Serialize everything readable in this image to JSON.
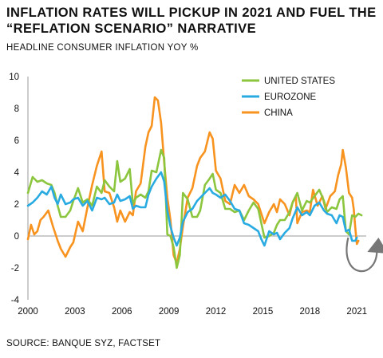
{
  "title_line1": "INFLATION RATES WILL PICKUP IN 2021 AND FUEL THE",
  "title_line2": "“REFLATION SCENARIO” NARRATIVE",
  "subtitle": "HEADLINE CONSUMER INFLATION YOY %",
  "source": "SOURCE: BANQUE SYZ, FACTSET",
  "colors": {
    "us": "#8cc63f",
    "eurozone": "#29abe2",
    "china": "#f7931e",
    "axis": "#999999",
    "arrow": "#777777"
  },
  "chart_data": {
    "type": "line",
    "title": "",
    "xlabel": "",
    "ylabel": "",
    "ylim": [
      -4,
      10
    ],
    "xlim": [
      2000,
      2021.6
    ],
    "y_ticks": [
      "-4",
      "-2",
      "0",
      "2",
      "4",
      "6",
      "8",
      "10"
    ],
    "x_ticks": [
      "2000",
      "2003",
      "2006",
      "2009",
      "2012",
      "2015",
      "2018",
      "2021"
    ],
    "legend_position": "top-right",
    "grid": false,
    "annotations": [
      "curved arrow near 2021 pointing upward (rebound expected)"
    ],
    "series": [
      {
        "name": "UNITED STATES",
        "color": "#8cc63f",
        "points": [
          [
            2000,
            2.7
          ],
          [
            2000.3,
            3.7
          ],
          [
            2000.6,
            3.4
          ],
          [
            2000.9,
            3.5
          ],
          [
            2001.2,
            3.3
          ],
          [
            2001.5,
            3.2
          ],
          [
            2001.7,
            2.7
          ],
          [
            2001.9,
            1.9
          ],
          [
            2002.1,
            1.2
          ],
          [
            2002.4,
            1.2
          ],
          [
            2002.7,
            1.6
          ],
          [
            2002.9,
            2.2
          ],
          [
            2003.2,
            3.0
          ],
          [
            2003.5,
            2.1
          ],
          [
            2003.8,
            2.3
          ],
          [
            2004.1,
            1.9
          ],
          [
            2004.4,
            3.1
          ],
          [
            2004.7,
            2.7
          ],
          [
            2004.9,
            3.5
          ],
          [
            2005.2,
            3.1
          ],
          [
            2005.5,
            2.8
          ],
          [
            2005.7,
            4.7
          ],
          [
            2005.9,
            3.4
          ],
          [
            2006.2,
            3.6
          ],
          [
            2006.5,
            4.2
          ],
          [
            2006.7,
            2.0
          ],
          [
            2006.9,
            2.4
          ],
          [
            2007.2,
            2.6
          ],
          [
            2007.5,
            2.4
          ],
          [
            2007.7,
            2.8
          ],
          [
            2007.9,
            4.1
          ],
          [
            2008.2,
            4.0
          ],
          [
            2008.5,
            5.4
          ],
          [
            2008.7,
            4.9
          ],
          [
            2008.9,
            0.1
          ],
          [
            2009.1,
            0.0
          ],
          [
            2009.3,
            -0.7
          ],
          [
            2009.5,
            -2.0
          ],
          [
            2009.7,
            -1.2
          ],
          [
            2009.9,
            2.7
          ],
          [
            2010.2,
            2.3
          ],
          [
            2010.5,
            1.2
          ],
          [
            2010.8,
            1.2
          ],
          [
            2011.0,
            1.6
          ],
          [
            2011.3,
            3.2
          ],
          [
            2011.6,
            3.6
          ],
          [
            2011.8,
            3.9
          ],
          [
            2012.0,
            2.9
          ],
          [
            2012.3,
            2.7
          ],
          [
            2012.6,
            1.7
          ],
          [
            2012.9,
            1.7
          ],
          [
            2013.2,
            1.5
          ],
          [
            2013.5,
            1.6
          ],
          [
            2013.8,
            1.0
          ],
          [
            2014.1,
            1.6
          ],
          [
            2014.4,
            2.1
          ],
          [
            2014.7,
            1.7
          ],
          [
            2014.9,
            0.8
          ],
          [
            2015.1,
            -0.1
          ],
          [
            2015.4,
            0.0
          ],
          [
            2015.7,
            0.2
          ],
          [
            2015.9,
            0.7
          ],
          [
            2016.1,
            1.0
          ],
          [
            2016.4,
            1.0
          ],
          [
            2016.7,
            1.5
          ],
          [
            2016.9,
            2.1
          ],
          [
            2017.2,
            2.7
          ],
          [
            2017.5,
            1.6
          ],
          [
            2017.8,
            2.2
          ],
          [
            2018.0,
            2.1
          ],
          [
            2018.3,
            2.5
          ],
          [
            2018.6,
            2.9
          ],
          [
            2018.9,
            2.2
          ],
          [
            2019.1,
            1.5
          ],
          [
            2019.4,
            1.8
          ],
          [
            2019.7,
            1.7
          ],
          [
            2019.9,
            2.3
          ],
          [
            2020.1,
            2.5
          ],
          [
            2020.3,
            0.3
          ],
          [
            2020.5,
            0.1
          ],
          [
            2020.7,
            1.3
          ],
          [
            2020.9,
            1.2
          ],
          [
            2021.1,
            1.4
          ],
          [
            2021.3,
            1.3
          ]
        ]
      },
      {
        "name": "EUROZONE",
        "color": "#29abe2",
        "points": [
          [
            2000,
            1.9
          ],
          [
            2000.3,
            2.1
          ],
          [
            2000.6,
            2.4
          ],
          [
            2000.9,
            2.8
          ],
          [
            2001.2,
            2.6
          ],
          [
            2001.5,
            3.1
          ],
          [
            2001.7,
            2.4
          ],
          [
            2001.9,
            2.0
          ],
          [
            2002.1,
            2.6
          ],
          [
            2002.4,
            2.0
          ],
          [
            2002.7,
            2.1
          ],
          [
            2002.9,
            2.3
          ],
          [
            2003.2,
            2.4
          ],
          [
            2003.5,
            1.9
          ],
          [
            2003.8,
            2.2
          ],
          [
            2004.1,
            1.6
          ],
          [
            2004.4,
            2.4
          ],
          [
            2004.7,
            2.3
          ],
          [
            2004.9,
            2.4
          ],
          [
            2005.2,
            2.0
          ],
          [
            2005.5,
            2.1
          ],
          [
            2005.7,
            2.6
          ],
          [
            2005.9,
            2.2
          ],
          [
            2006.2,
            2.3
          ],
          [
            2006.5,
            2.5
          ],
          [
            2006.7,
            1.7
          ],
          [
            2006.9,
            1.9
          ],
          [
            2007.2,
            1.8
          ],
          [
            2007.5,
            1.8
          ],
          [
            2007.7,
            2.6
          ],
          [
            2007.9,
            3.1
          ],
          [
            2008.2,
            3.6
          ],
          [
            2008.5,
            4.0
          ],
          [
            2008.7,
            3.4
          ],
          [
            2008.9,
            1.6
          ],
          [
            2009.1,
            0.6
          ],
          [
            2009.3,
            -0.1
          ],
          [
            2009.5,
            -0.6
          ],
          [
            2009.7,
            -0.1
          ],
          [
            2009.9,
            0.9
          ],
          [
            2010.2,
            1.5
          ],
          [
            2010.5,
            1.7
          ],
          [
            2010.8,
            2.2
          ],
          [
            2011.0,
            2.4
          ],
          [
            2011.3,
            2.7
          ],
          [
            2011.6,
            3.0
          ],
          [
            2011.8,
            2.7
          ],
          [
            2012.0,
            2.6
          ],
          [
            2012.3,
            2.4
          ],
          [
            2012.6,
            2.6
          ],
          [
            2012.9,
            2.2
          ],
          [
            2013.2,
            1.7
          ],
          [
            2013.5,
            1.6
          ],
          [
            2013.8,
            0.8
          ],
          [
            2014.1,
            0.7
          ],
          [
            2014.4,
            0.5
          ],
          [
            2014.7,
            0.3
          ],
          [
            2014.9,
            -0.2
          ],
          [
            2015.1,
            -0.6
          ],
          [
            2015.4,
            0.3
          ],
          [
            2015.7,
            0.1
          ],
          [
            2015.9,
            0.2
          ],
          [
            2016.1,
            -0.2
          ],
          [
            2016.4,
            0.2
          ],
          [
            2016.7,
            0.5
          ],
          [
            2016.9,
            1.1
          ],
          [
            2017.2,
            1.8
          ],
          [
            2017.5,
            1.3
          ],
          [
            2017.8,
            1.5
          ],
          [
            2018.0,
            1.3
          ],
          [
            2018.3,
            1.9
          ],
          [
            2018.6,
            2.1
          ],
          [
            2018.9,
            1.6
          ],
          [
            2019.1,
            1.4
          ],
          [
            2019.4,
            1.3
          ],
          [
            2019.7,
            0.8
          ],
          [
            2019.9,
            1.3
          ],
          [
            2020.1,
            1.2
          ],
          [
            2020.3,
            0.3
          ],
          [
            2020.5,
            0.4
          ],
          [
            2020.7,
            -0.3
          ],
          [
            2020.9,
            -0.3
          ],
          [
            2021.0,
            -0.1
          ]
        ]
      },
      {
        "name": "CHINA",
        "color": "#f7931e",
        "points": [
          [
            2000,
            -0.2
          ],
          [
            2000.2,
            0.7
          ],
          [
            2000.4,
            0.1
          ],
          [
            2000.6,
            0.3
          ],
          [
            2000.8,
            1.0
          ],
          [
            2001.0,
            1.2
          ],
          [
            2001.3,
            1.6
          ],
          [
            2001.6,
            0.6
          ],
          [
            2001.9,
            -0.3
          ],
          [
            2002.1,
            -0.8
          ],
          [
            2002.4,
            -1.3
          ],
          [
            2002.7,
            -0.7
          ],
          [
            2002.9,
            -0.4
          ],
          [
            2003.2,
            0.9
          ],
          [
            2003.5,
            0.3
          ],
          [
            2003.8,
            1.8
          ],
          [
            2004.1,
            3.2
          ],
          [
            2004.4,
            4.4
          ],
          [
            2004.7,
            5.3
          ],
          [
            2004.9,
            2.8
          ],
          [
            2005.2,
            2.7
          ],
          [
            2005.5,
            1.8
          ],
          [
            2005.7,
            0.9
          ],
          [
            2005.9,
            1.6
          ],
          [
            2006.2,
            0.9
          ],
          [
            2006.5,
            1.5
          ],
          [
            2006.7,
            1.3
          ],
          [
            2006.9,
            2.8
          ],
          [
            2007.2,
            3.3
          ],
          [
            2007.5,
            5.6
          ],
          [
            2007.7,
            6.5
          ],
          [
            2007.9,
            6.9
          ],
          [
            2008.1,
            8.7
          ],
          [
            2008.3,
            8.5
          ],
          [
            2008.5,
            7.1
          ],
          [
            2008.7,
            4.6
          ],
          [
            2008.9,
            2.4
          ],
          [
            2009.1,
            1.0
          ],
          [
            2009.3,
            -1.2
          ],
          [
            2009.5,
            -1.7
          ],
          [
            2009.7,
            -0.8
          ],
          [
            2009.9,
            0.6
          ],
          [
            2010.2,
            2.4
          ],
          [
            2010.5,
            3.0
          ],
          [
            2010.8,
            4.4
          ],
          [
            2011.0,
            4.9
          ],
          [
            2011.3,
            5.3
          ],
          [
            2011.6,
            6.5
          ],
          [
            2011.8,
            6.1
          ],
          [
            2012.0,
            4.1
          ],
          [
            2012.3,
            3.6
          ],
          [
            2012.6,
            2.2
          ],
          [
            2012.9,
            2.0
          ],
          [
            2013.2,
            3.2
          ],
          [
            2013.5,
            2.7
          ],
          [
            2013.8,
            3.2
          ],
          [
            2014.1,
            2.5
          ],
          [
            2014.4,
            2.3
          ],
          [
            2014.7,
            2.0
          ],
          [
            2014.9,
            1.4
          ],
          [
            2015.1,
            0.8
          ],
          [
            2015.4,
            1.5
          ],
          [
            2015.7,
            2.0
          ],
          [
            2015.9,
            1.5
          ],
          [
            2016.1,
            2.3
          ],
          [
            2016.4,
            2.0
          ],
          [
            2016.7,
            1.3
          ],
          [
            2016.9,
            2.1
          ],
          [
            2017.1,
            2.5
          ],
          [
            2017.2,
            0.8
          ],
          [
            2017.5,
            1.5
          ],
          [
            2017.8,
            1.6
          ],
          [
            2018.0,
            1.5
          ],
          [
            2018.2,
            2.9
          ],
          [
            2018.5,
            1.9
          ],
          [
            2018.8,
            2.5
          ],
          [
            2019.0,
            1.7
          ],
          [
            2019.3,
            2.5
          ],
          [
            2019.6,
            2.8
          ],
          [
            2019.8,
            3.8
          ],
          [
            2020.0,
            4.5
          ],
          [
            2020.1,
            5.4
          ],
          [
            2020.3,
            4.3
          ],
          [
            2020.5,
            2.7
          ],
          [
            2020.7,
            2.4
          ],
          [
            2020.8,
            1.7
          ],
          [
            2020.9,
            0.5
          ],
          [
            2021.0,
            -0.5
          ],
          [
            2021.1,
            -0.3
          ]
        ]
      }
    ]
  }
}
